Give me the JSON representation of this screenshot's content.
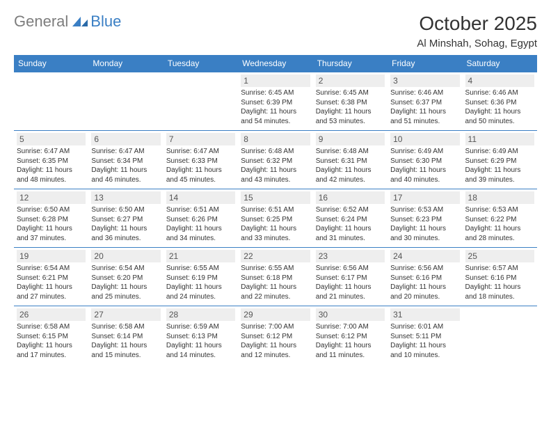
{
  "logo": {
    "part1": "General",
    "part2": "Blue"
  },
  "title": "October 2025",
  "subtitle": "Al Minshah, Sohag, Egypt",
  "colors": {
    "header_bg": "#3a7fc4",
    "header_text": "#ffffff",
    "daynum_bg": "#eeeeee",
    "border": "#3a7fc4",
    "text": "#333333",
    "logo_gray": "#7d7d7d",
    "logo_blue": "#3a7fc4",
    "background": "#ffffff"
  },
  "fonts": {
    "title_size": 28,
    "subtitle_size": 15,
    "th_size": 12,
    "daynum_size": 12,
    "info_size": 10
  },
  "weekdays": [
    "Sunday",
    "Monday",
    "Tuesday",
    "Wednesday",
    "Thursday",
    "Friday",
    "Saturday"
  ],
  "weeks": [
    [
      null,
      null,
      null,
      {
        "n": "1",
        "sr": "Sunrise: 6:45 AM",
        "ss": "Sunset: 6:39 PM",
        "d1": "Daylight: 11 hours",
        "d2": "and 54 minutes."
      },
      {
        "n": "2",
        "sr": "Sunrise: 6:45 AM",
        "ss": "Sunset: 6:38 PM",
        "d1": "Daylight: 11 hours",
        "d2": "and 53 minutes."
      },
      {
        "n": "3",
        "sr": "Sunrise: 6:46 AM",
        "ss": "Sunset: 6:37 PM",
        "d1": "Daylight: 11 hours",
        "d2": "and 51 minutes."
      },
      {
        "n": "4",
        "sr": "Sunrise: 6:46 AM",
        "ss": "Sunset: 6:36 PM",
        "d1": "Daylight: 11 hours",
        "d2": "and 50 minutes."
      }
    ],
    [
      {
        "n": "5",
        "sr": "Sunrise: 6:47 AM",
        "ss": "Sunset: 6:35 PM",
        "d1": "Daylight: 11 hours",
        "d2": "and 48 minutes."
      },
      {
        "n": "6",
        "sr": "Sunrise: 6:47 AM",
        "ss": "Sunset: 6:34 PM",
        "d1": "Daylight: 11 hours",
        "d2": "and 46 minutes."
      },
      {
        "n": "7",
        "sr": "Sunrise: 6:47 AM",
        "ss": "Sunset: 6:33 PM",
        "d1": "Daylight: 11 hours",
        "d2": "and 45 minutes."
      },
      {
        "n": "8",
        "sr": "Sunrise: 6:48 AM",
        "ss": "Sunset: 6:32 PM",
        "d1": "Daylight: 11 hours",
        "d2": "and 43 minutes."
      },
      {
        "n": "9",
        "sr": "Sunrise: 6:48 AM",
        "ss": "Sunset: 6:31 PM",
        "d1": "Daylight: 11 hours",
        "d2": "and 42 minutes."
      },
      {
        "n": "10",
        "sr": "Sunrise: 6:49 AM",
        "ss": "Sunset: 6:30 PM",
        "d1": "Daylight: 11 hours",
        "d2": "and 40 minutes."
      },
      {
        "n": "11",
        "sr": "Sunrise: 6:49 AM",
        "ss": "Sunset: 6:29 PM",
        "d1": "Daylight: 11 hours",
        "d2": "and 39 minutes."
      }
    ],
    [
      {
        "n": "12",
        "sr": "Sunrise: 6:50 AM",
        "ss": "Sunset: 6:28 PM",
        "d1": "Daylight: 11 hours",
        "d2": "and 37 minutes."
      },
      {
        "n": "13",
        "sr": "Sunrise: 6:50 AM",
        "ss": "Sunset: 6:27 PM",
        "d1": "Daylight: 11 hours",
        "d2": "and 36 minutes."
      },
      {
        "n": "14",
        "sr": "Sunrise: 6:51 AM",
        "ss": "Sunset: 6:26 PM",
        "d1": "Daylight: 11 hours",
        "d2": "and 34 minutes."
      },
      {
        "n": "15",
        "sr": "Sunrise: 6:51 AM",
        "ss": "Sunset: 6:25 PM",
        "d1": "Daylight: 11 hours",
        "d2": "and 33 minutes."
      },
      {
        "n": "16",
        "sr": "Sunrise: 6:52 AM",
        "ss": "Sunset: 6:24 PM",
        "d1": "Daylight: 11 hours",
        "d2": "and 31 minutes."
      },
      {
        "n": "17",
        "sr": "Sunrise: 6:53 AM",
        "ss": "Sunset: 6:23 PM",
        "d1": "Daylight: 11 hours",
        "d2": "and 30 minutes."
      },
      {
        "n": "18",
        "sr": "Sunrise: 6:53 AM",
        "ss": "Sunset: 6:22 PM",
        "d1": "Daylight: 11 hours",
        "d2": "and 28 minutes."
      }
    ],
    [
      {
        "n": "19",
        "sr": "Sunrise: 6:54 AM",
        "ss": "Sunset: 6:21 PM",
        "d1": "Daylight: 11 hours",
        "d2": "and 27 minutes."
      },
      {
        "n": "20",
        "sr": "Sunrise: 6:54 AM",
        "ss": "Sunset: 6:20 PM",
        "d1": "Daylight: 11 hours",
        "d2": "and 25 minutes."
      },
      {
        "n": "21",
        "sr": "Sunrise: 6:55 AM",
        "ss": "Sunset: 6:19 PM",
        "d1": "Daylight: 11 hours",
        "d2": "and 24 minutes."
      },
      {
        "n": "22",
        "sr": "Sunrise: 6:55 AM",
        "ss": "Sunset: 6:18 PM",
        "d1": "Daylight: 11 hours",
        "d2": "and 22 minutes."
      },
      {
        "n": "23",
        "sr": "Sunrise: 6:56 AM",
        "ss": "Sunset: 6:17 PM",
        "d1": "Daylight: 11 hours",
        "d2": "and 21 minutes."
      },
      {
        "n": "24",
        "sr": "Sunrise: 6:56 AM",
        "ss": "Sunset: 6:16 PM",
        "d1": "Daylight: 11 hours",
        "d2": "and 20 minutes."
      },
      {
        "n": "25",
        "sr": "Sunrise: 6:57 AM",
        "ss": "Sunset: 6:16 PM",
        "d1": "Daylight: 11 hours",
        "d2": "and 18 minutes."
      }
    ],
    [
      {
        "n": "26",
        "sr": "Sunrise: 6:58 AM",
        "ss": "Sunset: 6:15 PM",
        "d1": "Daylight: 11 hours",
        "d2": "and 17 minutes."
      },
      {
        "n": "27",
        "sr": "Sunrise: 6:58 AM",
        "ss": "Sunset: 6:14 PM",
        "d1": "Daylight: 11 hours",
        "d2": "and 15 minutes."
      },
      {
        "n": "28",
        "sr": "Sunrise: 6:59 AM",
        "ss": "Sunset: 6:13 PM",
        "d1": "Daylight: 11 hours",
        "d2": "and 14 minutes."
      },
      {
        "n": "29",
        "sr": "Sunrise: 7:00 AM",
        "ss": "Sunset: 6:12 PM",
        "d1": "Daylight: 11 hours",
        "d2": "and 12 minutes."
      },
      {
        "n": "30",
        "sr": "Sunrise: 7:00 AM",
        "ss": "Sunset: 6:12 PM",
        "d1": "Daylight: 11 hours",
        "d2": "and 11 minutes."
      },
      {
        "n": "31",
        "sr": "Sunrise: 6:01 AM",
        "ss": "Sunset: 5:11 PM",
        "d1": "Daylight: 11 hours",
        "d2": "and 10 minutes."
      },
      null
    ]
  ]
}
